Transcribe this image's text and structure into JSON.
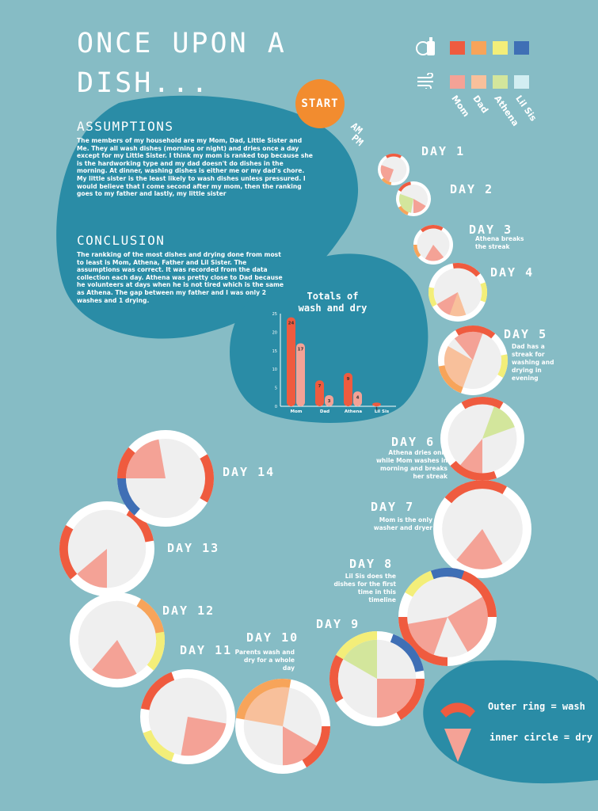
{
  "title": "ONCE UPON A DISH...",
  "start_label": "START",
  "ampm": {
    "am": "AM",
    "pm": "PM"
  },
  "assumptions": {
    "heading": "ASSUMPTIONS",
    "text": "The members of my household are my Mom, Dad, Little Sister and Me. They all wash dishes (morning or night) and dries once a day except for my Little Sister. I think my mom is ranked top because she is the hardworking type and my dad doesn't do dishes in the morning. At dinner, washing dishes is either me or my dad's chore. My little sister is the least likely to wash dishes unless pressured. I would believe that I come second after my mom, then the ranking goes to my father and lastly, my little sister"
  },
  "conclusion": {
    "heading": "CONCLUSION",
    "text": "The rankking of the most dishes and drying done from most to least is Mom, Athena, Father and Lil Sister. The assumptions was correct. It was recorded from the data collection each day. Athena was pretty close to Dad because he volunteers at days when he is not tired which is the same as Athena. The gap between my father and I was only 2 washes and 1 drying."
  },
  "legend": {
    "wash_icon": "dish-soap-icon",
    "dry_icon": "wind-icon",
    "wash_colors": [
      "#ef5b3f",
      "#f7a45a",
      "#f3ee79",
      "#3f6fb5"
    ],
    "dry_colors": [
      "#f4a296",
      "#f8c09b",
      "#d3e69c",
      "#d2eef2"
    ],
    "names": [
      "Mom",
      "Dad",
      "Athena",
      "Lil Sis"
    ]
  },
  "key": {
    "wash": "Outer ring = wash",
    "dry": "inner circle = dry"
  },
  "chart_data": {
    "type": "bar",
    "title": "Totals of wash and dry",
    "categories": [
      "Mom",
      "Dad",
      "Athena",
      "Lil Sis"
    ],
    "series": [
      {
        "values": [
          24,
          7,
          9,
          1
        ],
        "color": "#ef5b3f"
      },
      {
        "values": [
          17,
          3,
          4,
          null
        ],
        "color": "#f4a296"
      }
    ],
    "data_labels": [
      "24",
      "17",
      "7",
      "3",
      "9",
      "4",
      "1"
    ],
    "ylim": [
      0,
      25
    ],
    "yticks": [
      "0",
      "5",
      "10",
      "15",
      "20",
      "25"
    ],
    "xlabel": "",
    "ylabel": "",
    "grid": false
  },
  "days": [
    {
      "label": "DAY 1",
      "note": ""
    },
    {
      "label": "DAY 2",
      "note": ""
    },
    {
      "label": "DAY 3",
      "note": "Athena breaks the streak"
    },
    {
      "label": "DAY 4",
      "note": ""
    },
    {
      "label": "DAY 5",
      "note": "Dad has a streak for washing and drying in evening"
    },
    {
      "label": "DAY 6",
      "note": "Athena dries only while Mom washes in morning and breaks her streak"
    },
    {
      "label": "DAY 7",
      "note": "Mom is the only washer and dryer"
    },
    {
      "label": "DAY 8",
      "note": "Lil Sis does the dishes for the first time in this timeline"
    },
    {
      "label": "DAY 9",
      "note": ""
    },
    {
      "label": "DAY 10",
      "note": "Parents wash and dry for a whole day"
    },
    {
      "label": "DAY 11",
      "note": ""
    },
    {
      "label": "DAY 12",
      "note": ""
    },
    {
      "label": "DAY 13",
      "note": ""
    },
    {
      "label": "DAY 14",
      "note": ""
    }
  ]
}
